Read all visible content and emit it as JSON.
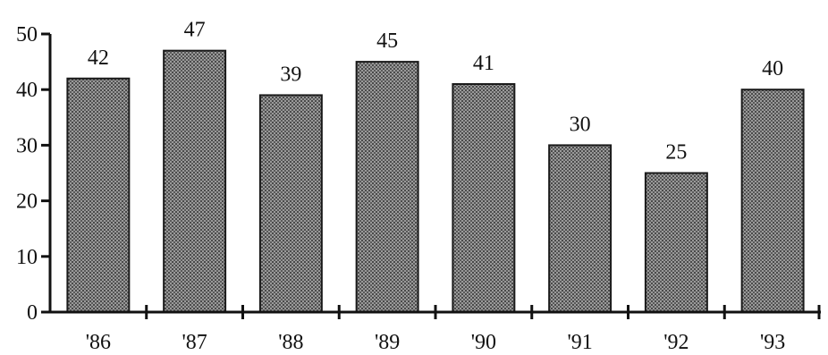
{
  "chart_data": {
    "type": "bar",
    "title": "",
    "xlabel": "",
    "ylabel": "",
    "categories": [
      "'86",
      "'87",
      "'88",
      "'89",
      "'90",
      "'91",
      "'92",
      "'93"
    ],
    "values": [
      42,
      47,
      39,
      45,
      41,
      30,
      25,
      40
    ],
    "data_labels": [
      "42",
      "47",
      "39",
      "45",
      "41",
      "30",
      "25",
      "40"
    ],
    "ylim": [
      0,
      50
    ],
    "yticks": [
      0,
      10,
      20,
      30,
      40,
      50
    ],
    "ytick_labels": [
      "0",
      "10",
      "20",
      "30",
      "40",
      "50"
    ],
    "grid": false,
    "legend": "none",
    "bar_color": "#7a7a7a",
    "bar_pattern": "halftone-dots",
    "axis_color": "#111111"
  }
}
